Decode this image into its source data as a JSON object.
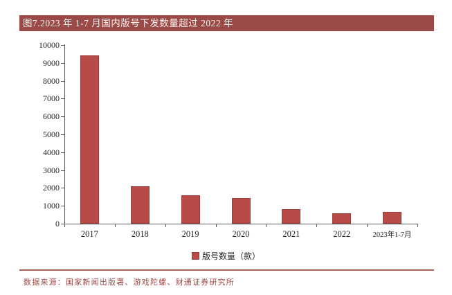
{
  "figure": {
    "title": "图7.2023 年 1-7 月国内版号下发数量超过 2022 年",
    "source": "数据来源：国家新闻出版署、游戏陀螺、财通证券研究所"
  },
  "chart_data": {
    "type": "bar",
    "title": "图7.2023 年 1-7 月国内版号下发数量超过 2022 年",
    "categories": [
      "2017",
      "2018",
      "2019",
      "2020",
      "2021",
      "2022",
      "2023年1-7月"
    ],
    "values": [
      9400,
      2100,
      1600,
      1430,
      800,
      570,
      650
    ],
    "series_name": "版号数量（款）",
    "legend": "版号数量（款）",
    "legend_position": "bottom",
    "xlabel": "",
    "ylabel": "",
    "ylim": [
      0,
      10000
    ],
    "ytick_step": 1000,
    "grid": false
  },
  "colors": {
    "accent": "#9B4B47",
    "bar_fill": "#B84B47",
    "bar_border": "#9D3C38",
    "axis": "#5A5A5A",
    "rule": "#A9605B",
    "title_text": "#FBF3F2"
  }
}
